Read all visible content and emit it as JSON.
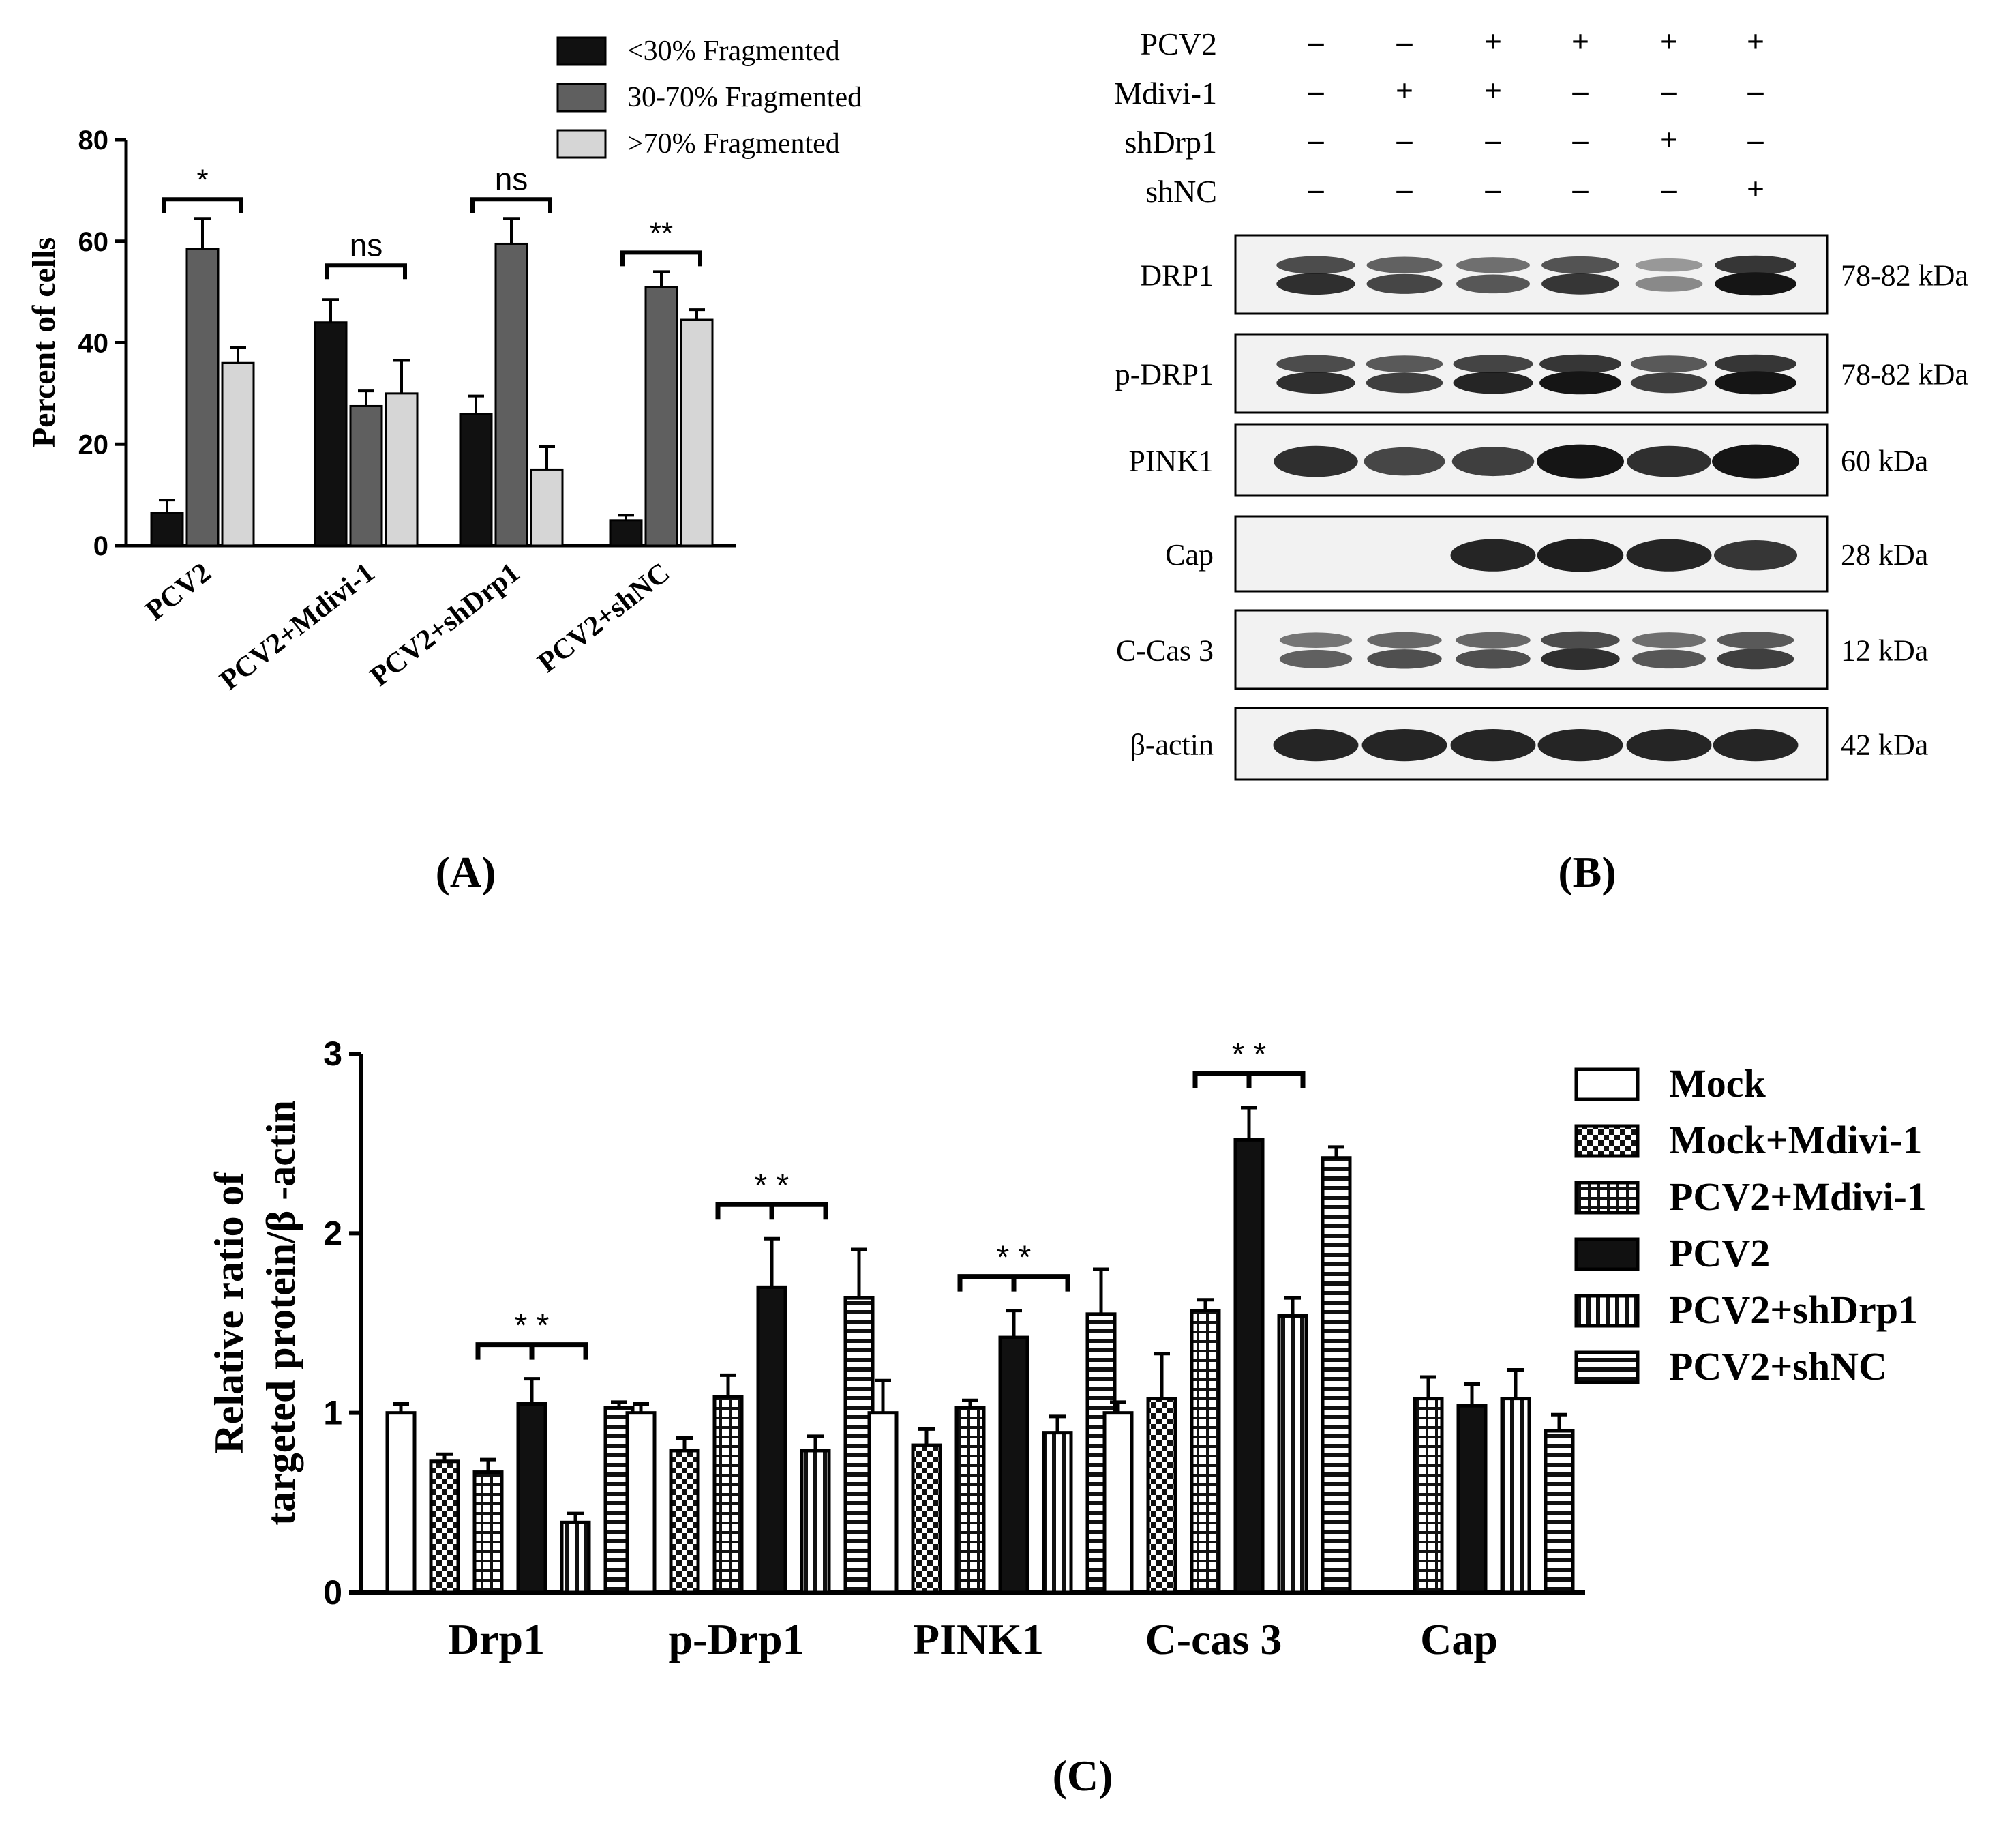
{
  "panel_labels": [
    "(A)",
    "(B)",
    "(C)"
  ],
  "colors": {
    "black": "#111111",
    "dark_gray": "#5f5f5f",
    "light_gray": "#d6d6d6",
    "white": "#ffffff",
    "blot_bg": "#f2f2f2",
    "band": "#151515"
  },
  "chart_data": [
    {
      "type": "bar",
      "panel": "A",
      "ylabel": "Percent of cells",
      "xlabel": "",
      "ylim": [
        0,
        80
      ],
      "yticks": [
        0,
        20,
        40,
        60,
        80
      ],
      "categories": [
        "PCV2",
        "PCV2+Mdivi-1",
        "PCV2+shDrp1",
        "PCV2+shNC"
      ],
      "series": [
        {
          "name": "<30% Fragmented",
          "values": [
            6.5,
            44,
            26,
            5
          ],
          "errors": [
            2.5,
            4.5,
            3.5,
            1
          ],
          "color": "#111111"
        },
        {
          "name": "30-70% Fragmented",
          "values": [
            58.5,
            27.5,
            59.5,
            51
          ],
          "errors": [
            6,
            3,
            5,
            3
          ],
          "color": "#5f5f5f"
        },
        {
          "name": ">70% Fragmented",
          "values": [
            36,
            30,
            15,
            44.5
          ],
          "errors": [
            3,
            6.5,
            4.5,
            2
          ],
          "color": "#d6d6d6"
        }
      ],
      "legend": "top-center",
      "annotations": [
        {
          "label": "*",
          "category": 0
        },
        {
          "label": "ns",
          "category": 1
        },
        {
          "label": "ns",
          "category": 2
        },
        {
          "label": "**",
          "category": 3
        }
      ]
    },
    {
      "type": "bar",
      "panel": "C",
      "ylabel_lines": [
        "Relative ratio of",
        "targeted protein/β -actin"
      ],
      "xlabel": "",
      "ylim": [
        0,
        3
      ],
      "yticks": [
        0,
        1,
        2,
        3
      ],
      "categories": [
        "Drp1",
        "p-Drp1",
        "PINK1",
        "C-cas 3",
        "Cap"
      ],
      "series": [
        {
          "name": "Mock",
          "pattern": "open",
          "values": [
            1.0,
            1.0,
            1.0,
            1.0,
            null
          ],
          "errors": [
            0.05,
            0.05,
            0.18,
            0.06,
            null
          ]
        },
        {
          "name": "Mock+Mdivi-1",
          "pattern": "checker",
          "values": [
            0.73,
            0.79,
            0.82,
            1.08,
            null
          ],
          "errors": [
            0.04,
            0.07,
            0.09,
            0.25,
            null
          ]
        },
        {
          "name": "PCV2+Mdivi-1",
          "pattern": "grid",
          "values": [
            0.67,
            1.09,
            1.03,
            1.57,
            1.08
          ],
          "errors": [
            0.07,
            0.12,
            0.04,
            0.06,
            0.12
          ]
        },
        {
          "name": "PCV2",
          "pattern": "solid",
          "values": [
            1.05,
            1.7,
            1.42,
            2.52,
            1.04
          ],
          "errors": [
            0.14,
            0.27,
            0.15,
            0.18,
            0.12
          ]
        },
        {
          "name": "PCV2+shDrp1",
          "pattern": "vertical",
          "values": [
            0.39,
            0.79,
            0.89,
            1.54,
            1.08
          ],
          "errors": [
            0.05,
            0.08,
            0.09,
            0.1,
            0.16
          ]
        },
        {
          "name": "PCV2+shNC",
          "pattern": "horizontal",
          "values": [
            1.03,
            1.64,
            1.55,
            2.42,
            0.9
          ],
          "errors": [
            0.03,
            0.27,
            0.25,
            0.06,
            0.09
          ]
        }
      ],
      "legend": "right",
      "annotations": [
        {
          "label": "*   *",
          "category": 0
        },
        {
          "label": "*   *",
          "category": 1
        },
        {
          "label": "*   *",
          "category": 2
        },
        {
          "label": "*   *",
          "category": 3
        }
      ]
    }
  ],
  "blot": {
    "treatments": [
      {
        "label": "PCV2",
        "values": [
          "–",
          "–",
          "+",
          "+",
          "+",
          "+"
        ]
      },
      {
        "label": "Mdivi-1",
        "values": [
          "–",
          "+",
          "+",
          "–",
          "–",
          "–"
        ]
      },
      {
        "label": "shDrp1",
        "values": [
          "–",
          "–",
          "–",
          "–",
          "+",
          "–"
        ]
      },
      {
        "label": "shNC",
        "values": [
          "–",
          "–",
          "–",
          "–",
          "–",
          "+"
        ]
      }
    ],
    "rows": [
      {
        "label": "DRP1",
        "size": "78-82 kDa",
        "intensity": [
          0.85,
          0.7,
          0.6,
          0.8,
          0.3,
          1.0
        ],
        "double": true
      },
      {
        "label": "p-DRP1",
        "size": "78-82 kDa",
        "intensity": [
          0.85,
          0.75,
          0.9,
          1.0,
          0.75,
          1.0
        ],
        "double": true
      },
      {
        "label": "PINK1",
        "size": "60 kDa",
        "intensity": [
          0.85,
          0.7,
          0.75,
          1.0,
          0.85,
          1.0
        ],
        "double": false
      },
      {
        "label": "Cap",
        "size": "28 kDa",
        "intensity": [
          0,
          0,
          0.9,
          0.95,
          0.9,
          0.8
        ],
        "double": false
      },
      {
        "label": "C-Cas 3",
        "size": "12 kDa",
        "intensity": [
          0.55,
          0.65,
          0.65,
          0.85,
          0.6,
          0.75
        ],
        "double": true
      },
      {
        "label": "β-actin",
        "size": "42 kDa",
        "intensity": [
          0.9,
          0.9,
          0.9,
          0.9,
          0.9,
          0.9
        ],
        "double": false
      }
    ]
  }
}
